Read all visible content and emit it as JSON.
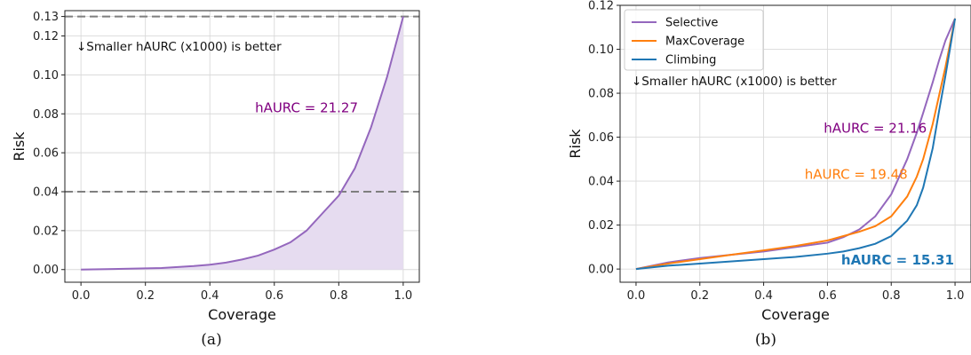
{
  "colors": {
    "selective": "#9467bd",
    "maxcoverage": "#ff7f0e",
    "climbing": "#1f77b4",
    "annot_a": "#800080",
    "fill_a": "#e6dcf0",
    "dashed": "#7f7f7f",
    "grid": "#d9d9d9"
  },
  "chart_data": [
    {
      "type": "area",
      "caption": "(a)",
      "xlabel": "Coverage",
      "ylabel": "Risk",
      "xlim": [
        -0.05,
        1.05
      ],
      "ylim": [
        -0.0065,
        0.133
      ],
      "xticks": [
        "0.0",
        "0.2",
        "0.4",
        "0.6",
        "0.8",
        "1.0"
      ],
      "xtick_values": [
        0,
        0.2,
        0.4,
        0.6,
        0.8,
        1.0
      ],
      "yticks": [
        "0.00",
        "0.02",
        "0.04",
        "0.06",
        "0.08",
        "0.10",
        "0.12",
        "0.13"
      ],
      "ytick_values": [
        0,
        0.02,
        0.04,
        0.06,
        0.08,
        0.1,
        0.12,
        0.13
      ],
      "grid": true,
      "hlines": [
        0.04,
        0.13
      ],
      "note": "↓Smaller hAURC (x1000) is better",
      "annotations": [
        {
          "text": "hAURC = 21.27",
          "x": 0.7,
          "y": 0.083,
          "color_key": "annot_a",
          "bold": false
        }
      ],
      "series": [
        {
          "name": "",
          "color_key": "selective",
          "fill": true,
          "x": [
            0,
            0.1,
            0.2,
            0.25,
            0.3,
            0.35,
            0.4,
            0.45,
            0.5,
            0.55,
            0.6,
            0.65,
            0.7,
            0.75,
            0.8,
            0.85,
            0.9,
            0.95,
            1.0
          ],
          "y": [
            0,
            0.0003,
            0.0006,
            0.0008,
            0.0013,
            0.0018,
            0.0025,
            0.0036,
            0.0052,
            0.0072,
            0.0103,
            0.014,
            0.02,
            0.029,
            0.038,
            0.052,
            0.073,
            0.099,
            0.13
          ]
        }
      ]
    },
    {
      "type": "line",
      "caption": "(b)",
      "xlabel": "Coverage",
      "ylabel": "Risk",
      "xlim": [
        -0.05,
        1.05
      ],
      "ylim": [
        -0.006,
        0.12
      ],
      "xticks": [
        "0.0",
        "0.2",
        "0.4",
        "0.6",
        "0.8",
        "1.0"
      ],
      "xtick_values": [
        0,
        0.2,
        0.4,
        0.6,
        0.8,
        1.0
      ],
      "yticks": [
        "0.00",
        "0.02",
        "0.04",
        "0.06",
        "0.08",
        "0.10",
        "0.12"
      ],
      "ytick_values": [
        0,
        0.02,
        0.04,
        0.06,
        0.08,
        0.1,
        0.12
      ],
      "grid": true,
      "legend": "top-left",
      "note": "↓Smaller hAURC (x1000) is better",
      "annotations": [
        {
          "text": "hAURC = 21.16",
          "x": 0.75,
          "y": 0.064,
          "color_key": "annot_a",
          "bold": false
        },
        {
          "text": "hAURC = 19.48",
          "x": 0.69,
          "y": 0.043,
          "color_key": "maxcoverage",
          "bold": false
        },
        {
          "text": "hAURC = 15.31",
          "x": 0.82,
          "y": 0.004,
          "color_key": "climbing",
          "bold": true
        }
      ],
      "series": [
        {
          "name": "Selective",
          "color_key": "selective",
          "x": [
            0,
            0.1,
            0.2,
            0.3,
            0.4,
            0.5,
            0.6,
            0.65,
            0.7,
            0.75,
            0.8,
            0.85,
            0.88,
            0.9,
            0.93,
            0.95,
            0.97,
            1.0
          ],
          "y": [
            0,
            0.003,
            0.005,
            0.0065,
            0.008,
            0.01,
            0.012,
            0.0145,
            0.018,
            0.024,
            0.034,
            0.05,
            0.062,
            0.071,
            0.085,
            0.095,
            0.104,
            0.114
          ]
        },
        {
          "name": "MaxCoverage",
          "color_key": "maxcoverage",
          "x": [
            0,
            0.1,
            0.2,
            0.3,
            0.4,
            0.5,
            0.6,
            0.65,
            0.7,
            0.75,
            0.8,
            0.85,
            0.88,
            0.9,
            0.93,
            0.95,
            0.97,
            1.0
          ],
          "y": [
            0,
            0.0025,
            0.0045,
            0.0065,
            0.0085,
            0.0105,
            0.013,
            0.015,
            0.017,
            0.0195,
            0.024,
            0.033,
            0.042,
            0.05,
            0.066,
            0.079,
            0.092,
            0.114
          ]
        },
        {
          "name": "Climbing",
          "color_key": "climbing",
          "x": [
            0,
            0.1,
            0.2,
            0.3,
            0.4,
            0.5,
            0.6,
            0.65,
            0.7,
            0.75,
            0.8,
            0.85,
            0.88,
            0.9,
            0.93,
            0.95,
            0.97,
            1.0
          ],
          "y": [
            0,
            0.0015,
            0.0025,
            0.0035,
            0.0045,
            0.0055,
            0.007,
            0.008,
            0.0095,
            0.0115,
            0.015,
            0.022,
            0.029,
            0.037,
            0.055,
            0.072,
            0.088,
            0.114
          ]
        }
      ]
    }
  ]
}
